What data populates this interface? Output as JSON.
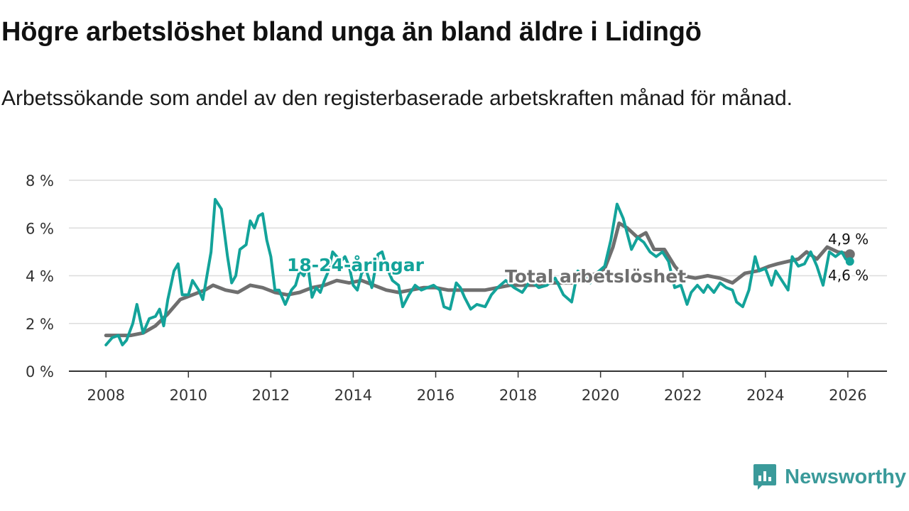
{
  "title": "Högre arbetslöshet bland unga än bland äldre i Lidingö",
  "subtitle": "Arbetssökande som andel av den registerbaserade arbetskraften månad för månad.",
  "brand": {
    "name": "Newsworthy",
    "icon": "chart-logo-icon",
    "color": "#3a9a9a"
  },
  "chart_data": {
    "type": "line",
    "x_axis": {
      "ticks": [
        2008,
        2010,
        2012,
        2014,
        2016,
        2018,
        2020,
        2022,
        2024,
        2026
      ],
      "range": [
        2007.1,
        2026.95
      ]
    },
    "y_axis": {
      "ticks": [
        0,
        2,
        4,
        6,
        8
      ],
      "tick_labels": [
        "0 %",
        "2 %",
        "4 %",
        "6 %",
        "8 %"
      ],
      "range": [
        0,
        8
      ]
    },
    "series": [
      {
        "name": "Total arbetslöshet",
        "color": "#6f6f6f",
        "label": "Total arbetslöshet",
        "end_label": "4,9 %",
        "points": [
          [
            2008.0,
            1.5
          ],
          [
            2008.3,
            1.5
          ],
          [
            2008.6,
            1.5
          ],
          [
            2008.9,
            1.6
          ],
          [
            2009.2,
            1.9
          ],
          [
            2009.5,
            2.4
          ],
          [
            2009.8,
            3.0
          ],
          [
            2010.1,
            3.2
          ],
          [
            2010.4,
            3.4
          ],
          [
            2010.6,
            3.6
          ],
          [
            2010.9,
            3.4
          ],
          [
            2011.2,
            3.3
          ],
          [
            2011.5,
            3.6
          ],
          [
            2011.8,
            3.5
          ],
          [
            2012.1,
            3.3
          ],
          [
            2012.4,
            3.2
          ],
          [
            2012.7,
            3.3
          ],
          [
            2013.0,
            3.5
          ],
          [
            2013.3,
            3.6
          ],
          [
            2013.6,
            3.8
          ],
          [
            2013.9,
            3.7
          ],
          [
            2014.2,
            3.8
          ],
          [
            2014.5,
            3.6
          ],
          [
            2014.8,
            3.4
          ],
          [
            2015.1,
            3.3
          ],
          [
            2015.4,
            3.4
          ],
          [
            2015.7,
            3.5
          ],
          [
            2016.0,
            3.5
          ],
          [
            2016.3,
            3.4
          ],
          [
            2016.6,
            3.4
          ],
          [
            2016.9,
            3.4
          ],
          [
            2017.2,
            3.4
          ],
          [
            2017.5,
            3.5
          ],
          [
            2017.8,
            3.6
          ],
          [
            2018.1,
            3.6
          ],
          [
            2018.4,
            3.6
          ],
          [
            2018.7,
            3.7
          ],
          [
            2019.0,
            3.7
          ],
          [
            2019.3,
            3.7
          ],
          [
            2019.6,
            3.9
          ],
          [
            2019.9,
            4.1
          ],
          [
            2020.1,
            4.3
          ],
          [
            2020.3,
            5.2
          ],
          [
            2020.45,
            6.2
          ],
          [
            2020.65,
            6.0
          ],
          [
            2020.9,
            5.6
          ],
          [
            2021.1,
            5.8
          ],
          [
            2021.3,
            5.1
          ],
          [
            2021.55,
            5.1
          ],
          [
            2021.8,
            4.4
          ],
          [
            2022.0,
            4.0
          ],
          [
            2022.3,
            3.9
          ],
          [
            2022.6,
            4.0
          ],
          [
            2022.9,
            3.9
          ],
          [
            2023.2,
            3.7
          ],
          [
            2023.5,
            4.1
          ],
          [
            2023.8,
            4.2
          ],
          [
            2024.1,
            4.4
          ],
          [
            2024.3,
            4.5
          ],
          [
            2024.55,
            4.6
          ],
          [
            2024.8,
            4.7
          ],
          [
            2025.0,
            5.0
          ],
          [
            2025.25,
            4.7
          ],
          [
            2025.5,
            5.2
          ],
          [
            2025.75,
            5.0
          ],
          [
            2026.05,
            4.9
          ]
        ]
      },
      {
        "name": "18-24-åringar",
        "color": "#13a39a",
        "label": "18-24-åringar",
        "end_label": "4,6 %",
        "points": [
          [
            2008.0,
            1.1
          ],
          [
            2008.15,
            1.4
          ],
          [
            2008.3,
            1.5
          ],
          [
            2008.4,
            1.1
          ],
          [
            2008.5,
            1.3
          ],
          [
            2008.65,
            2.0
          ],
          [
            2008.75,
            2.8
          ],
          [
            2008.9,
            1.6
          ],
          [
            2009.05,
            2.2
          ],
          [
            2009.2,
            2.3
          ],
          [
            2009.3,
            2.6
          ],
          [
            2009.4,
            1.9
          ],
          [
            2009.5,
            3.0
          ],
          [
            2009.65,
            4.2
          ],
          [
            2009.75,
            4.5
          ],
          [
            2009.85,
            3.2
          ],
          [
            2010.0,
            3.2
          ],
          [
            2010.1,
            3.8
          ],
          [
            2010.25,
            3.4
          ],
          [
            2010.35,
            3.0
          ],
          [
            2010.45,
            4.0
          ],
          [
            2010.55,
            5.0
          ],
          [
            2010.65,
            7.2
          ],
          [
            2010.8,
            6.8
          ],
          [
            2010.95,
            4.8
          ],
          [
            2011.05,
            3.7
          ],
          [
            2011.15,
            4.0
          ],
          [
            2011.25,
            5.1
          ],
          [
            2011.4,
            5.3
          ],
          [
            2011.5,
            6.3
          ],
          [
            2011.6,
            6.0
          ],
          [
            2011.7,
            6.5
          ],
          [
            2011.8,
            6.6
          ],
          [
            2011.9,
            5.5
          ],
          [
            2012.0,
            4.8
          ],
          [
            2012.1,
            3.4
          ],
          [
            2012.2,
            3.4
          ],
          [
            2012.35,
            2.8
          ],
          [
            2012.5,
            3.4
          ],
          [
            2012.6,
            3.6
          ],
          [
            2012.7,
            4.2
          ],
          [
            2012.8,
            4.0
          ],
          [
            2012.9,
            4.4
          ],
          [
            2013.0,
            3.1
          ],
          [
            2013.1,
            3.5
          ],
          [
            2013.2,
            3.3
          ],
          [
            2013.3,
            3.8
          ],
          [
            2013.4,
            4.2
          ],
          [
            2013.5,
            5.0
          ],
          [
            2013.6,
            4.8
          ],
          [
            2013.7,
            4.6
          ],
          [
            2013.8,
            4.8
          ],
          [
            2013.9,
            4.4
          ],
          [
            2014.0,
            3.6
          ],
          [
            2014.1,
            3.4
          ],
          [
            2014.2,
            4.1
          ],
          [
            2014.3,
            4.3
          ],
          [
            2014.45,
            3.5
          ],
          [
            2014.6,
            4.9
          ],
          [
            2014.7,
            5.0
          ],
          [
            2014.8,
            4.4
          ],
          [
            2014.95,
            3.8
          ],
          [
            2015.1,
            3.6
          ],
          [
            2015.2,
            2.7
          ],
          [
            2015.35,
            3.2
          ],
          [
            2015.5,
            3.6
          ],
          [
            2015.65,
            3.4
          ],
          [
            2015.8,
            3.5
          ],
          [
            2015.95,
            3.6
          ],
          [
            2016.1,
            3.4
          ],
          [
            2016.2,
            2.7
          ],
          [
            2016.35,
            2.6
          ],
          [
            2016.5,
            3.7
          ],
          [
            2016.6,
            3.5
          ],
          [
            2016.7,
            3.1
          ],
          [
            2016.85,
            2.6
          ],
          [
            2017.0,
            2.8
          ],
          [
            2017.2,
            2.7
          ],
          [
            2017.35,
            3.2
          ],
          [
            2017.5,
            3.5
          ],
          [
            2017.7,
            3.8
          ],
          [
            2017.9,
            3.5
          ],
          [
            2018.1,
            3.3
          ],
          [
            2018.3,
            3.8
          ],
          [
            2018.5,
            3.5
          ],
          [
            2018.7,
            3.6
          ],
          [
            2018.9,
            3.9
          ],
          [
            2019.1,
            3.2
          ],
          [
            2019.3,
            2.9
          ],
          [
            2019.45,
            4.2
          ],
          [
            2019.6,
            4.0
          ],
          [
            2019.75,
            3.7
          ],
          [
            2019.9,
            4.1
          ],
          [
            2020.1,
            4.4
          ],
          [
            2020.25,
            5.5
          ],
          [
            2020.4,
            7.0
          ],
          [
            2020.55,
            6.4
          ],
          [
            2020.75,
            5.1
          ],
          [
            2020.9,
            5.6
          ],
          [
            2021.05,
            5.4
          ],
          [
            2021.2,
            5.0
          ],
          [
            2021.35,
            4.8
          ],
          [
            2021.5,
            5.0
          ],
          [
            2021.65,
            4.6
          ],
          [
            2021.8,
            3.5
          ],
          [
            2021.95,
            3.6
          ],
          [
            2022.1,
            2.8
          ],
          [
            2022.2,
            3.3
          ],
          [
            2022.35,
            3.6
          ],
          [
            2022.5,
            3.3
          ],
          [
            2022.6,
            3.6
          ],
          [
            2022.75,
            3.3
          ],
          [
            2022.9,
            3.7
          ],
          [
            2023.05,
            3.5
          ],
          [
            2023.2,
            3.4
          ],
          [
            2023.3,
            2.9
          ],
          [
            2023.45,
            2.7
          ],
          [
            2023.6,
            3.4
          ],
          [
            2023.75,
            4.8
          ],
          [
            2023.85,
            4.2
          ],
          [
            2024.0,
            4.3
          ],
          [
            2024.15,
            3.6
          ],
          [
            2024.25,
            4.2
          ],
          [
            2024.4,
            3.8
          ],
          [
            2024.55,
            3.4
          ],
          [
            2024.65,
            4.8
          ],
          [
            2024.8,
            4.4
          ],
          [
            2024.95,
            4.5
          ],
          [
            2025.1,
            5.0
          ],
          [
            2025.25,
            4.4
          ],
          [
            2025.4,
            3.6
          ],
          [
            2025.55,
            5.0
          ],
          [
            2025.7,
            4.8
          ],
          [
            2025.85,
            5.0
          ],
          [
            2025.95,
            4.7
          ],
          [
            2026.05,
            4.6
          ]
        ]
      }
    ]
  }
}
